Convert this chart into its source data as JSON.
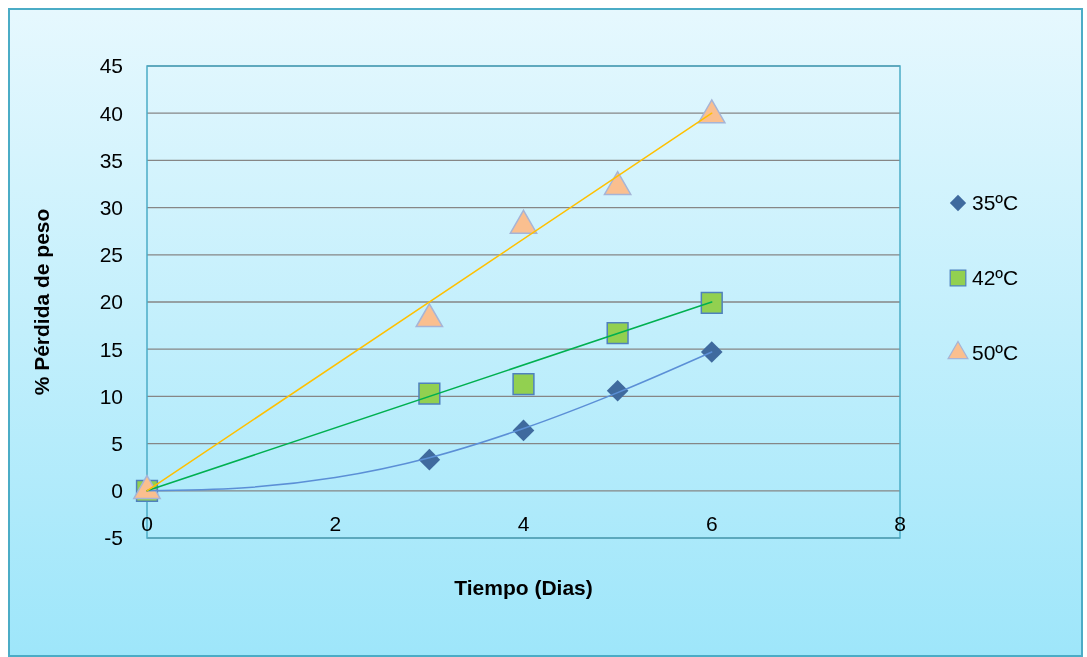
{
  "chart_data": {
    "type": "scatter",
    "xlabel": "Tiempo (Dias)",
    "ylabel": "% Pérdida de peso",
    "xlim": [
      0,
      8
    ],
    "xticks": [
      0,
      2,
      4,
      6,
      8
    ],
    "ylim": [
      -5,
      45
    ],
    "yticks": [
      -5,
      0,
      5,
      10,
      15,
      20,
      25,
      30,
      35,
      40,
      45
    ],
    "grid": "y",
    "legend": "right",
    "series": [
      {
        "name": "35ºC",
        "marker": "diamond",
        "color": "#3f6a9e",
        "x": [
          3,
          4,
          5,
          6
        ],
        "values": [
          3.3,
          6.4,
          10.6,
          14.7
        ]
      },
      {
        "name": "42ºC",
        "marker": "square",
        "color": "#92d050",
        "x": [
          0,
          3,
          4,
          5,
          6
        ],
        "values": [
          0,
          10.3,
          11.3,
          16.7,
          19.9
        ]
      },
      {
        "name": "50ºC",
        "marker": "triangle",
        "color": "#fabf8f",
        "x": [
          0,
          3,
          4,
          5,
          6
        ],
        "values": [
          0,
          18.2,
          28.1,
          32.2,
          39.8
        ]
      },
      {
        "type": "line",
        "marker": "none",
        "line_style": "solid",
        "color": "#5b8fd6",
        "x": [
          0,
          1,
          2,
          3,
          4,
          5,
          6
        ],
        "values": [
          0,
          0.3,
          1.4,
          3.5,
          6.6,
          10.4,
          14.7
        ]
      },
      {
        "type": "line",
        "marker": "none",
        "line_style": "solid",
        "color": "#00b050",
        "x": [
          0,
          6
        ],
        "values": [
          0,
          20
        ]
      },
      {
        "type": "line",
        "marker": "none",
        "line_style": "solid",
        "color": "#ffc000",
        "x": [
          0,
          6
        ],
        "values": [
          0,
          40
        ]
      }
    ]
  }
}
